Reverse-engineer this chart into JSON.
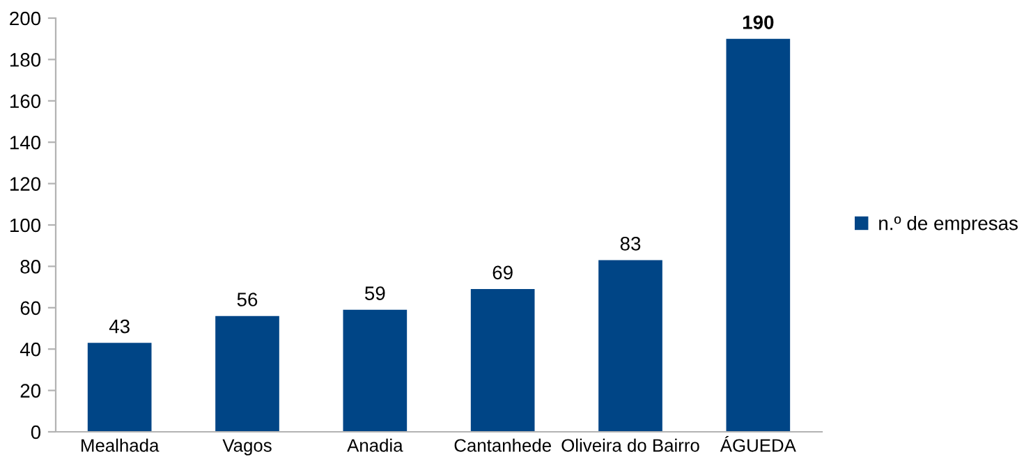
{
  "chart_data": {
    "type": "bar",
    "categories": [
      "Mealhada",
      "Vagos",
      "Anadia",
      "Cantanhede",
      "Oliveira do Bairro",
      "ÁGUEDA"
    ],
    "series": [
      {
        "name": "n.º de empresas",
        "color": "#004586",
        "values": [
          43,
          56,
          59,
          69,
          83,
          190
        ]
      }
    ],
    "ylim": [
      0,
      200
    ],
    "yticks": [
      0,
      20,
      40,
      60,
      80,
      100,
      120,
      140,
      160,
      180,
      200
    ],
    "data_labels": true,
    "grid": false,
    "legend": "right"
  }
}
